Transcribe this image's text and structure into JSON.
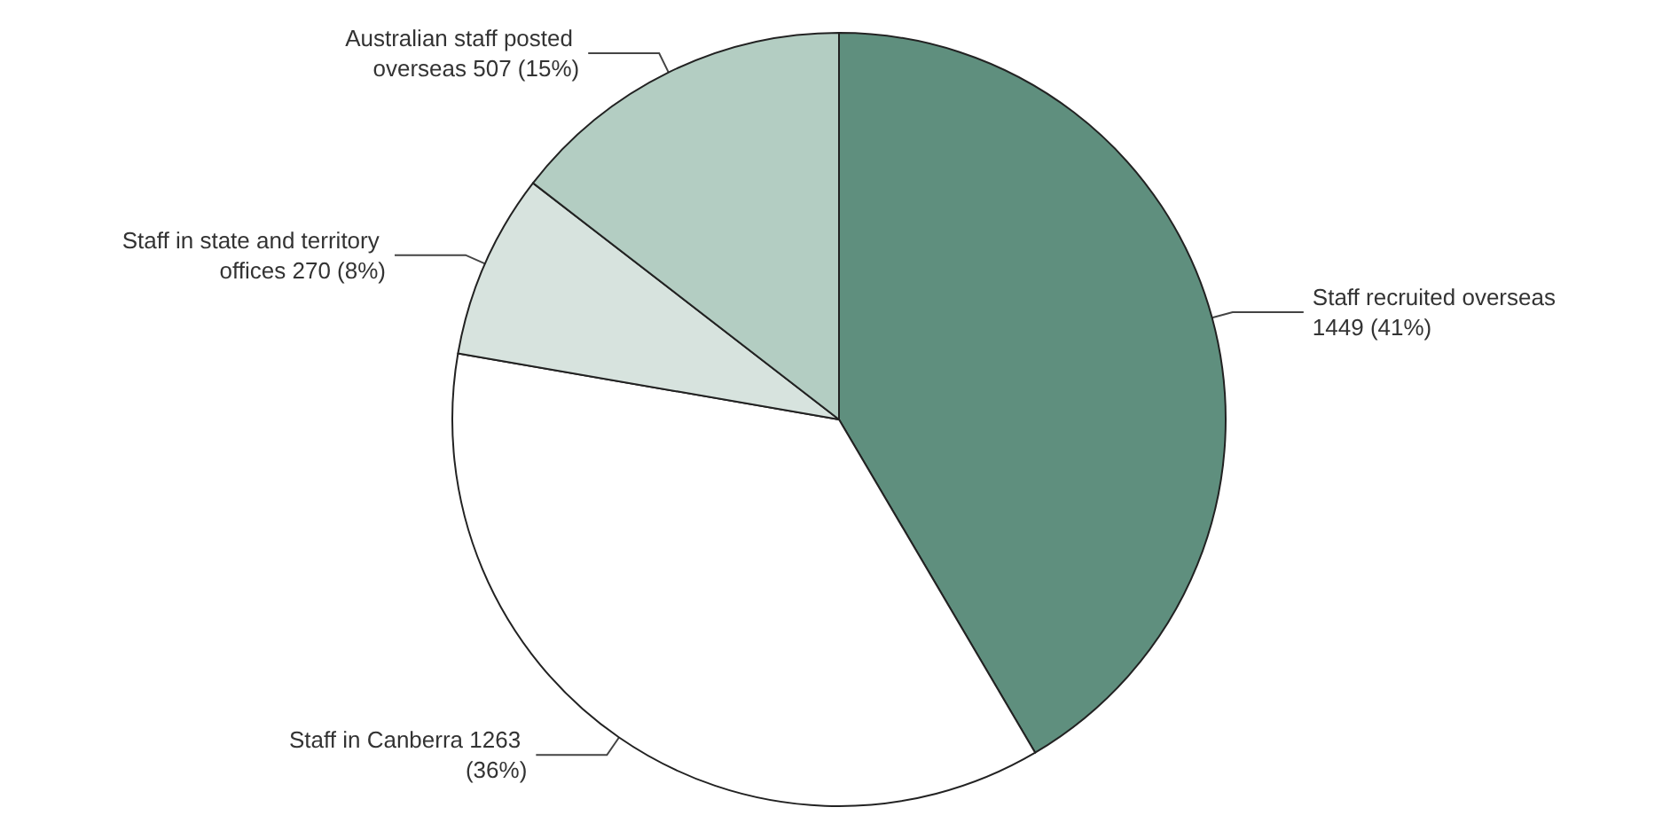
{
  "chart_data": {
    "type": "pie",
    "categories": [
      "Staff recruited overseas",
      "Staff in Canberra",
      "Staff in state and territory offices",
      "Australian staff posted overseas"
    ],
    "values": [
      1449,
      1263,
      270,
      507
    ],
    "value_labels": [
      "1449 (41%)",
      "1263 (36%)",
      "270 (8%)",
      "507 (15%)"
    ],
    "colors": [
      "#5f8f7e",
      "#ffffff",
      "#d7e3de",
      "#b3cdc2"
    ],
    "legend": false
  }
}
